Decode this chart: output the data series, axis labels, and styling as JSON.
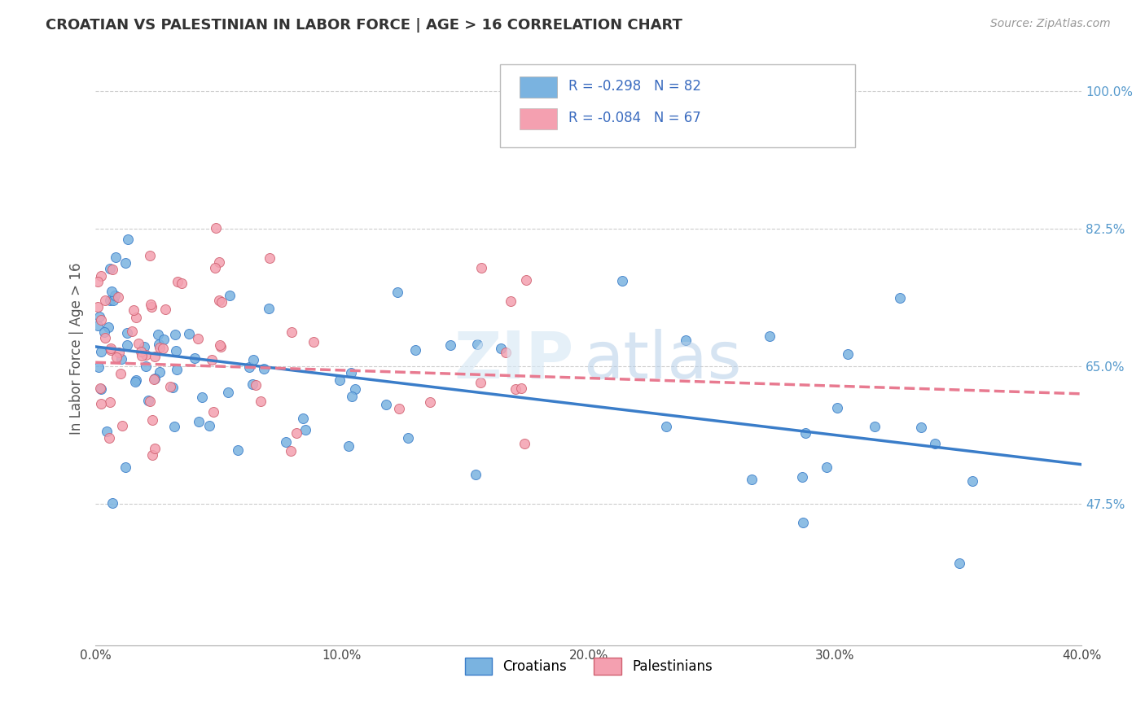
{
  "title": "CROATIAN VS PALESTINIAN IN LABOR FORCE | AGE > 16 CORRELATION CHART",
  "source_text": "Source: ZipAtlas.com",
  "ylabel": "In Labor Force | Age > 16",
  "xlim": [
    0.0,
    0.4
  ],
  "ylim": [
    0.295,
    1.05
  ],
  "xticks": [
    0.0,
    0.1,
    0.2,
    0.3,
    0.4
  ],
  "xtick_labels": [
    "0.0%",
    "10.0%",
    "20.0%",
    "30.0%",
    "40.0%"
  ],
  "yticks": [
    0.475,
    0.65,
    0.825,
    1.0
  ],
  "ytick_labels": [
    "47.5%",
    "65.0%",
    "82.5%",
    "100.0%"
  ],
  "croatian_color": "#7ab3e0",
  "palestinian_color": "#f4a0b0",
  "croatian_line_color": "#3a7dc9",
  "palestinian_line_color": "#e87a90",
  "bg_color": "#ffffff",
  "grid_color": "#cccccc",
  "legend_R_color": "#3a6bbf",
  "croatian_R": -0.298,
  "croatian_N": 82,
  "palestinian_R": -0.084,
  "palestinian_N": 67,
  "seed": 42,
  "cr_line_y0": 0.675,
  "cr_line_y1": 0.525,
  "pal_line_y0": 0.655,
  "pal_line_y1": 0.615
}
